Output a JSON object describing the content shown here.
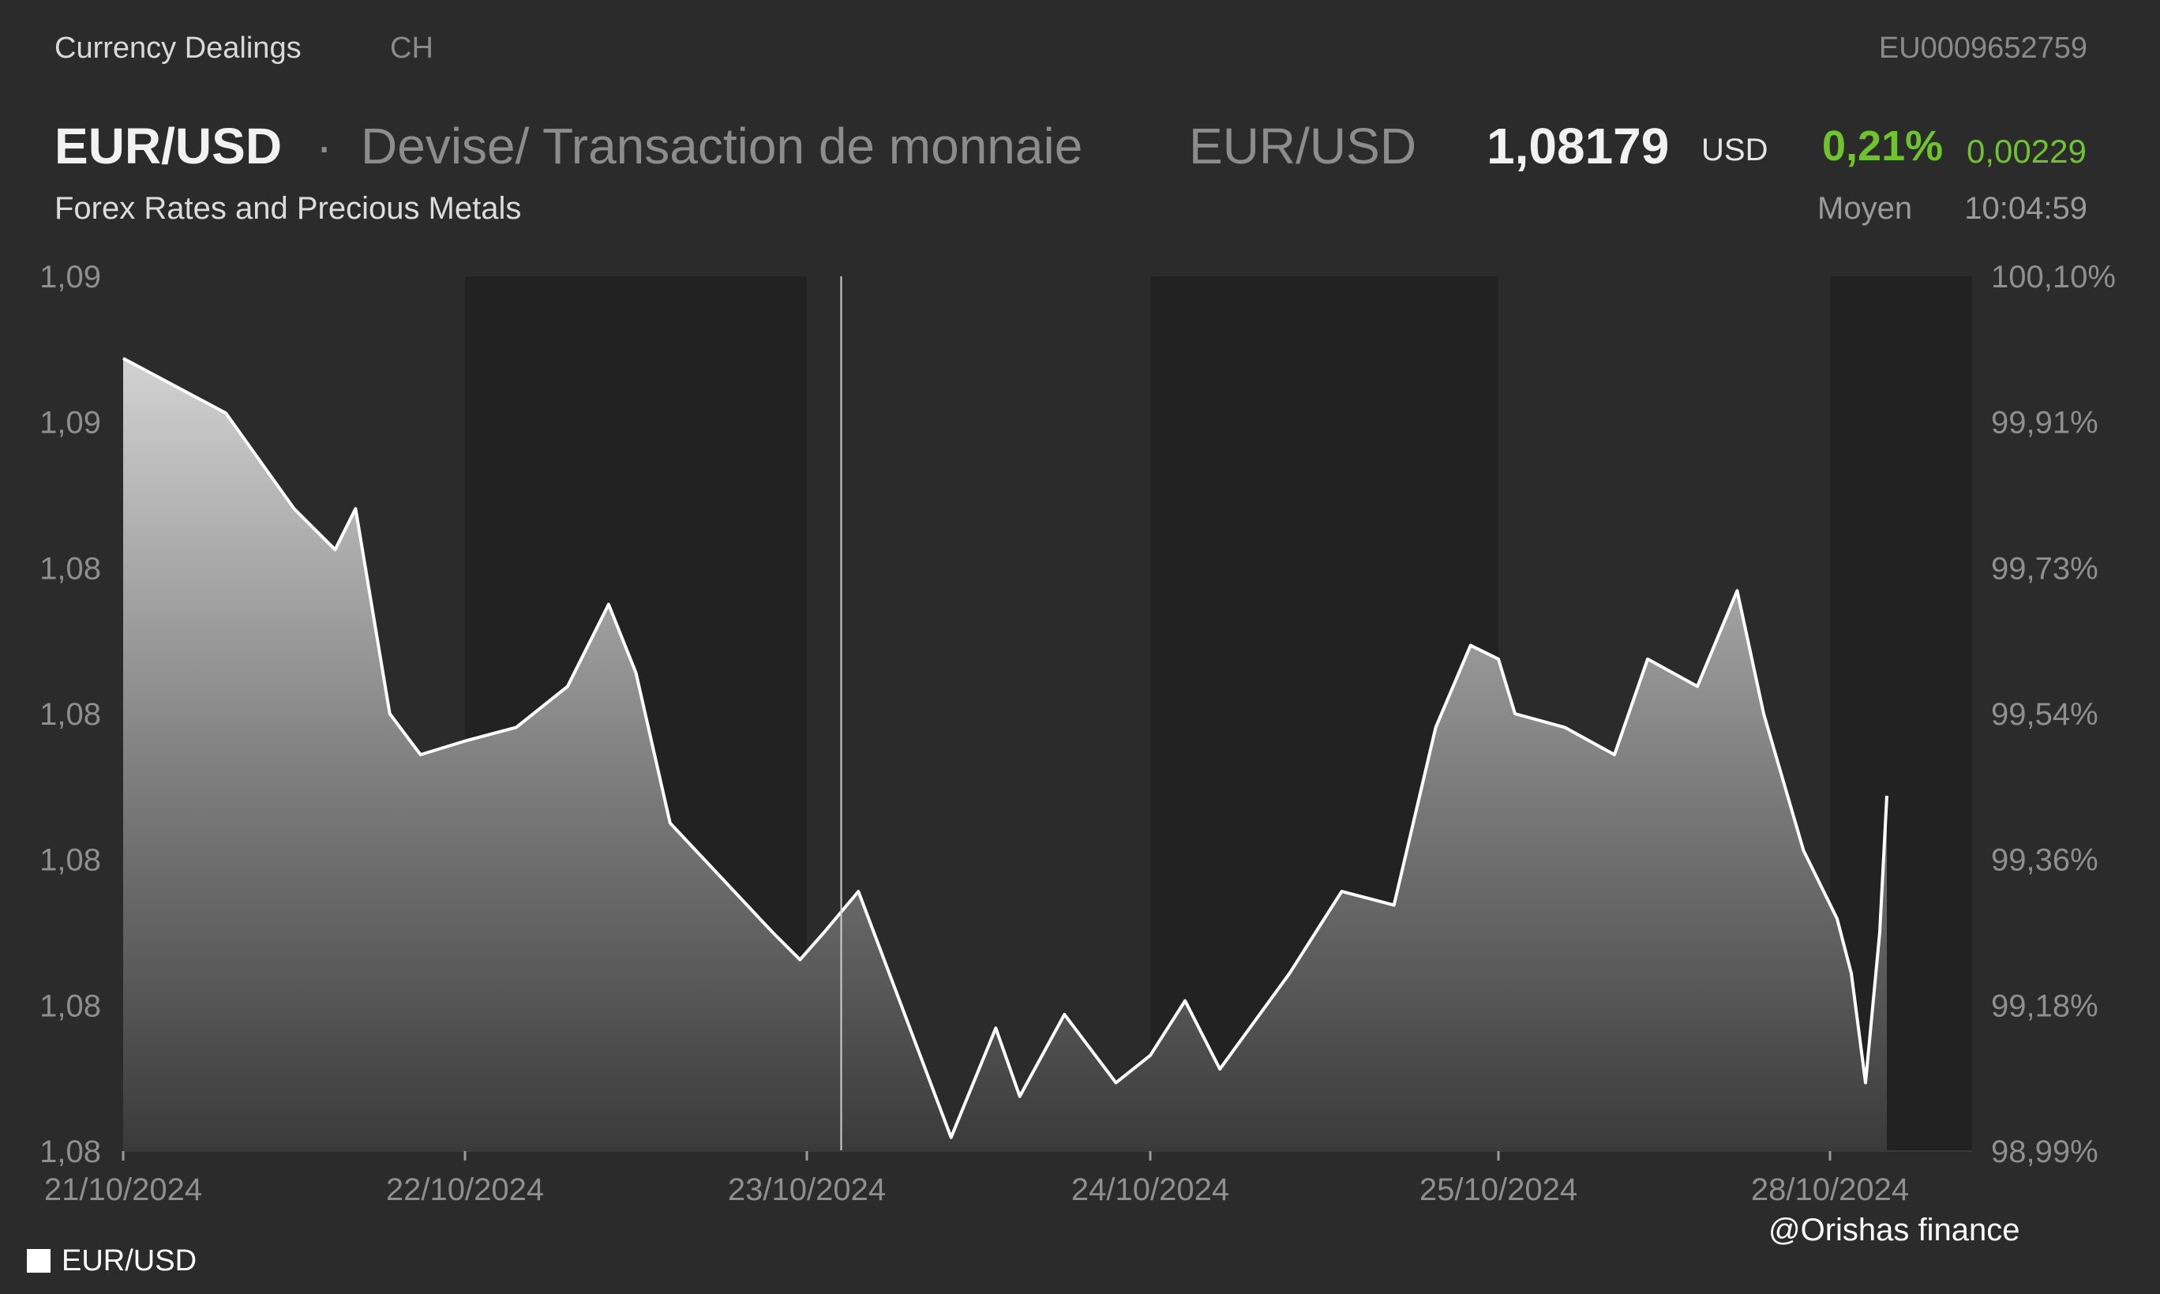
{
  "header": {
    "section": "Currency Dealings",
    "country": "CH",
    "isin": "EU0009652759",
    "pair": "EUR/USD",
    "separator": "·",
    "description": "Devise/ Transaction de monnaie",
    "pair_secondary": "EUR/USD",
    "price": "1,08179",
    "currency": "USD",
    "change_pct": "0,21%",
    "change_abs": "0,00229",
    "category": "Forex Rates and Precious Metals",
    "price_type": "Moyen",
    "time": "10:04:59"
  },
  "colors": {
    "background": "#2b2b2b",
    "shade_band": "#222222",
    "line": "#ffffff",
    "positive": "#6fc32d",
    "axis_text": "#8f8f8f"
  },
  "legend": {
    "label": "EUR/USD"
  },
  "watermark": "@Orishas finance",
  "chart_data": {
    "type": "area",
    "series": [
      {
        "name": "EUR/USD",
        "x": [
          0,
          0.15,
          0.3,
          0.5,
          0.62,
          0.68,
          0.78,
          0.87,
          1.0,
          1.15,
          1.3,
          1.42,
          1.5,
          1.6,
          1.75,
          1.9,
          1.98,
          2.05,
          2.15,
          2.3,
          2.42,
          2.55,
          2.62,
          2.75,
          2.9,
          3.0,
          3.1,
          3.2,
          3.4,
          3.55,
          3.7,
          3.82,
          3.92,
          4.0,
          4.05,
          4.2,
          4.35,
          4.45,
          4.6,
          4.72,
          4.8,
          4.92,
          5.05,
          5.15,
          5.25,
          5.35,
          5.4
        ],
        "values": [
          1.0894,
          1.0892,
          1.089,
          1.0883,
          1.088,
          1.0883,
          1.0868,
          1.0865,
          1.0866,
          1.0867,
          1.087,
          1.0876,
          1.0871,
          1.086,
          1.0856,
          1.0852,
          1.085,
          1.0852,
          1.0855,
          1.0845,
          1.0837,
          1.0845,
          1.084,
          1.0846,
          1.0841,
          1.0843,
          1.0847,
          1.0842,
          1.0849,
          1.0855,
          1.0854,
          1.0867,
          1.0873,
          1.0872,
          1.0868,
          1.0867,
          1.0865,
          1.0872,
          1.087,
          1.0877,
          1.0868,
          1.0858,
          1.0853,
          1.0849,
          1.0841,
          1.0852,
          1.0862
        ]
      }
    ],
    "xlabels": [
      "21/10/2024",
      "22/10/2024",
      "23/10/2024",
      "24/10/2024",
      "25/10/2024",
      "28/10/2024"
    ],
    "ylabels_left": [
      "1,09",
      "1,09",
      "1,08",
      "1,08",
      "1,08",
      "1,08",
      "1,08"
    ],
    "ylabels_right": [
      "100,10%",
      "99,91%",
      "99,73%",
      "99,54%",
      "99,36%",
      "99,18%",
      "98,99%"
    ],
    "ylim": [
      1.0836,
      1.09
    ],
    "xlim": [
      0,
      5.4
    ],
    "shaded_days": [
      1,
      3,
      5
    ],
    "cursor_x": 2.1,
    "grid": false,
    "legend_position": "bottom-left"
  }
}
